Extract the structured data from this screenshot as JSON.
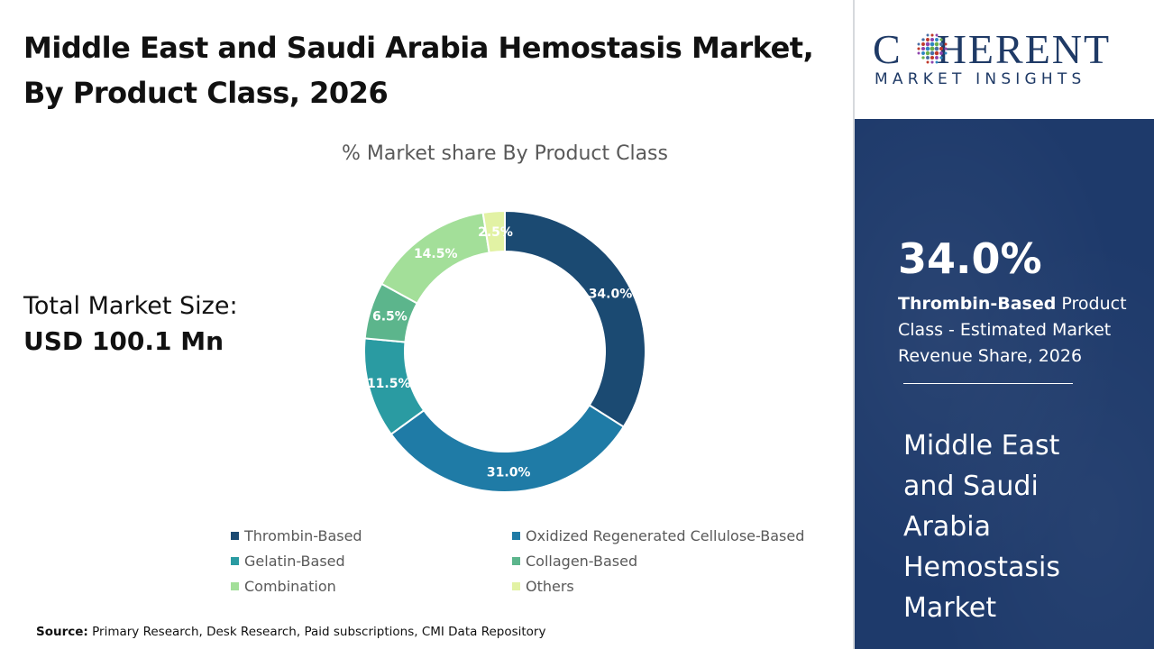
{
  "title": "Middle East and Saudi Arabia Hemostasis Market, By Product Class, 2026",
  "total_market_label": "Total Market Size:",
  "total_market_value": "USD 100.1 Mn",
  "source_label": "Source:",
  "source_text": "Primary Research, Desk Research, Paid subscriptions, CMI Data Repository",
  "logo": {
    "word_prefix": "C",
    "word_suffix": "HERENT",
    "subtitle": "MARKET INSIGHTS",
    "color": "#1f3a66"
  },
  "highlight": {
    "value": "34.0%",
    "segment": "Thrombin-Based",
    "rest": " Product Class - Estimated Market Revenue Share, 2026",
    "market_name": "Middle East and Saudi Arabia Hemostasis Market",
    "panel_color": "#1e3a6b"
  },
  "chart_data": {
    "type": "pie",
    "variant": "donut",
    "title": "% Market share By Product Class",
    "categories": [
      "Thrombin-Based",
      "Oxidized Regenerated Cellulose-Based",
      "Gelatin-Based",
      "Collagen-Based",
      "Combination",
      "Others"
    ],
    "values": [
      34.0,
      31.0,
      11.5,
      6.5,
      14.5,
      2.5
    ],
    "labels": [
      "34.0%",
      "31.0%",
      "11.5%",
      "6.5%",
      "14.5%",
      "2.5%"
    ],
    "colors": [
      "#1b4a72",
      "#1f7ba6",
      "#2a9ba2",
      "#5cb58c",
      "#a3df99",
      "#e2f2a4"
    ],
    "legend_position": "bottom"
  }
}
